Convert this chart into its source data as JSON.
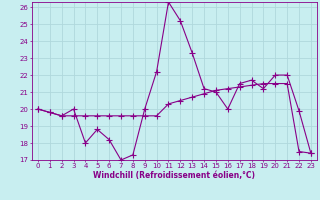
{
  "xlabel": "Windchill (Refroidissement éolien,°C)",
  "background_color": "#c8eef0",
  "grid_color": "#b0d8dc",
  "line_color": "#880088",
  "x_hours": [
    0,
    1,
    2,
    3,
    4,
    5,
    6,
    7,
    8,
    9,
    10,
    11,
    12,
    13,
    14,
    15,
    16,
    17,
    18,
    19,
    20,
    21,
    22,
    23
  ],
  "line1_y": [
    20.0,
    19.8,
    19.6,
    20.0,
    18.0,
    18.8,
    18.2,
    17.0,
    17.3,
    20.0,
    22.2,
    26.3,
    25.2,
    23.3,
    21.2,
    21.0,
    20.0,
    21.5,
    21.7,
    21.2,
    22.0,
    22.0,
    19.9,
    17.4
  ],
  "line2_y": [
    20.0,
    19.8,
    19.6,
    19.6,
    19.6,
    19.6,
    19.6,
    19.6,
    19.6,
    19.6,
    19.6,
    20.3,
    20.5,
    20.7,
    20.9,
    21.1,
    21.2,
    21.3,
    21.4,
    21.5,
    21.5,
    21.5,
    17.5,
    17.4
  ],
  "ylim_min": 17,
  "ylim_max": 26,
  "xlim_min": 0,
  "xlim_max": 23,
  "yticks": [
    17,
    18,
    19,
    20,
    21,
    22,
    23,
    24,
    25,
    26
  ],
  "xticks": [
    0,
    1,
    2,
    3,
    4,
    5,
    6,
    7,
    8,
    9,
    10,
    11,
    12,
    13,
    14,
    15,
    16,
    17,
    18,
    19,
    20,
    21,
    22,
    23
  ],
  "tick_fontsize": 5.0,
  "xlabel_fontsize": 5.5,
  "marker": "D",
  "markersize": 2.0,
  "linewidth": 0.8
}
